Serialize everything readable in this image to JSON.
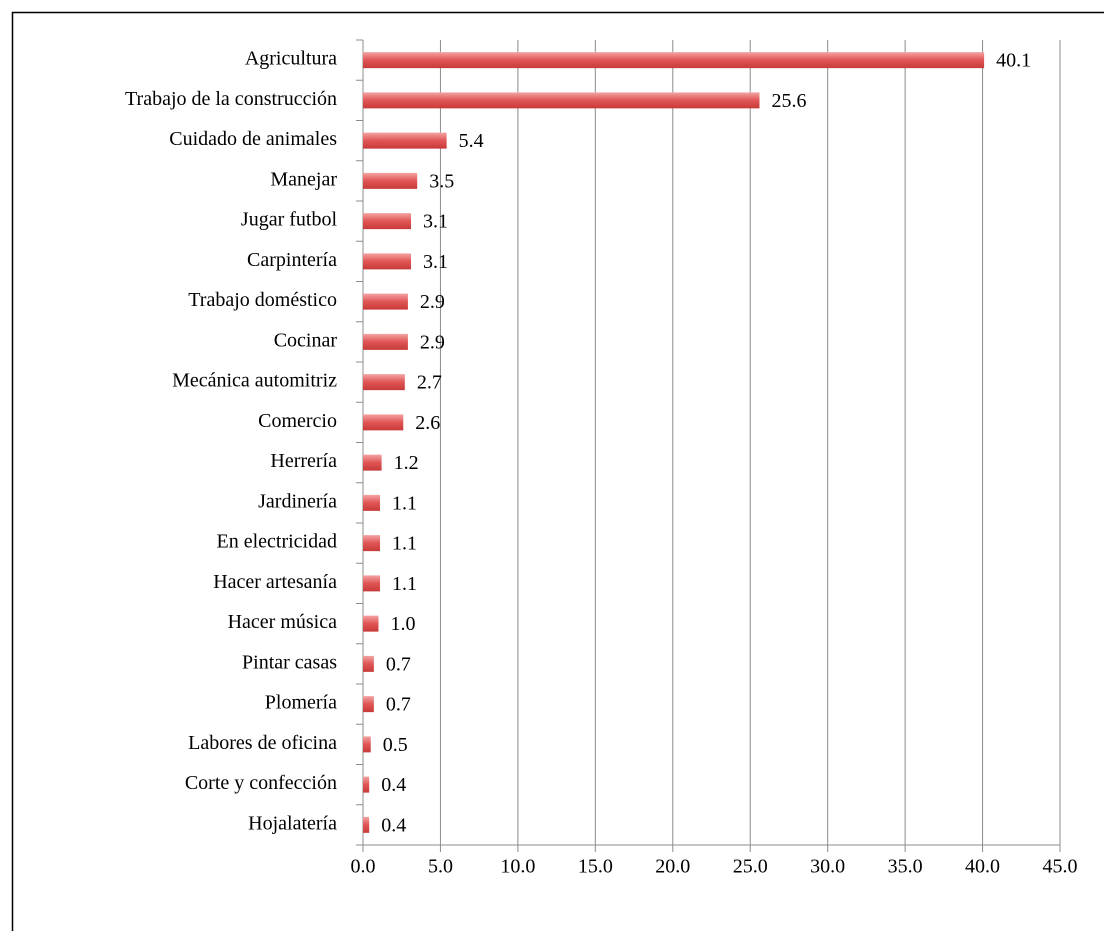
{
  "chart_data": {
    "type": "bar",
    "orientation": "horizontal",
    "categories": [
      "Agricultura",
      "Trabajo de la construcción",
      "Cuidado de animales",
      "Manejar",
      "Jugar futbol",
      "Carpintería",
      "Trabajo doméstico",
      "Cocinar",
      "Mecánica automitriz",
      "Comercio",
      "Herrería",
      "Jardinería",
      "En electricidad",
      "Hacer artesanía",
      "Hacer música",
      "Pintar casas",
      "Plomería",
      "Labores de oficina",
      "Corte y confección",
      "Hojalatería"
    ],
    "values": [
      40.1,
      25.6,
      5.4,
      3.5,
      3.1,
      3.1,
      2.9,
      2.9,
      2.7,
      2.6,
      1.2,
      1.1,
      1.1,
      1.1,
      1.0,
      0.7,
      0.7,
      0.5,
      0.4,
      0.4
    ],
    "value_labels": [
      "40.1",
      "25.6",
      "5.4",
      "3.5",
      "3.1",
      "3.1",
      "2.9",
      "2.9",
      "2.7",
      "2.6",
      "1.2",
      "1.1",
      "1.1",
      "1.1",
      "1.0",
      "0.7",
      "0.7",
      "0.5",
      "0.4",
      "0.4"
    ],
    "color": "#e05555",
    "xlim": [
      0,
      45
    ],
    "xticks": [
      {
        "value": 0,
        "label": "0.0"
      },
      {
        "value": 5,
        "label": "5.0"
      },
      {
        "value": 10,
        "label": "10.0"
      },
      {
        "value": 15,
        "label": "15.0"
      },
      {
        "value": 20,
        "label": "20.0"
      },
      {
        "value": 25,
        "label": "25.0"
      },
      {
        "value": 30,
        "label": "30.0"
      },
      {
        "value": 35,
        "label": "35.0"
      },
      {
        "value": 40,
        "label": "40.0"
      },
      {
        "value": 45,
        "label": "45.0"
      }
    ],
    "grid": true
  }
}
